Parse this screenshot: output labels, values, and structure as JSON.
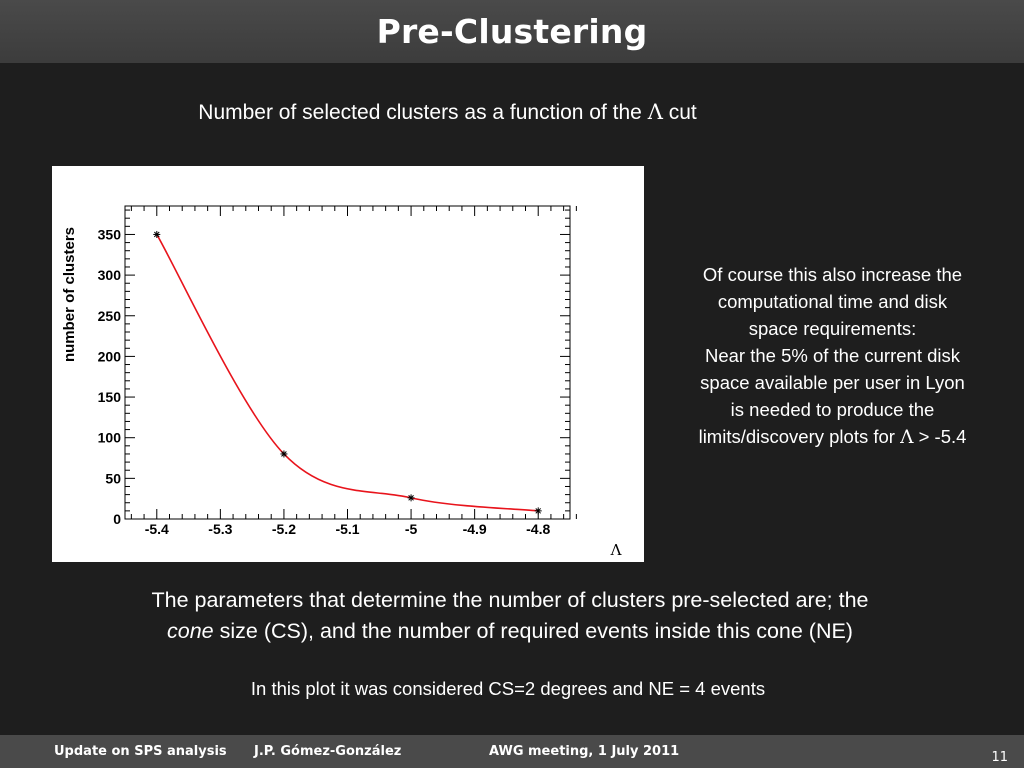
{
  "slide": {
    "title": "Pre-Clustering",
    "subtitle_pre": "Number of selected clusters as a function of the ",
    "subtitle_symbol": "Λ",
    "subtitle_post": " cut",
    "note_lines": [
      "Of course this also increase the",
      "computational time and disk",
      "space requirements:",
      "Near the 5% of the current disk",
      "space available per user in Lyon",
      "is needed to produce the"
    ],
    "note_last_pre": "limits/discovery plots for ",
    "note_last_symbol": "Λ",
    "note_last_post": " > -5.4",
    "para1_pre": "The parameters that determine the number of clusters pre-selected are; the",
    "para1_cone": "cone",
    "para1_post": " size (CS), and the number of required events inside this cone (NE)",
    "para2": "In this plot it was considered  CS=2 degrees and NE = 4 events"
  },
  "footer": {
    "left": "Update on SPS analysis",
    "author": "J.P. Gómez-González",
    "meeting": "AWG meeting, 1 July 2011",
    "page": "11"
  },
  "chart_data": {
    "type": "line",
    "title": "",
    "xlabel": "Λ",
    "ylabel": "number of clusters",
    "x": [
      -5.4,
      -5.2,
      -5.0,
      -4.8
    ],
    "values": [
      350,
      80,
      26,
      10
    ],
    "xlim": [
      -5.45,
      -4.75
    ],
    "ylim": [
      0,
      385
    ],
    "xticks": [
      "-5.4",
      "-5.3",
      "-5.2",
      "-5.1",
      "-5",
      "-4.9",
      "-4.8"
    ],
    "yticks": [
      "0",
      "50",
      "100",
      "150",
      "200",
      "250",
      "300",
      "350"
    ],
    "line_color": "#e8141c",
    "marker": "star",
    "grid": false
  }
}
